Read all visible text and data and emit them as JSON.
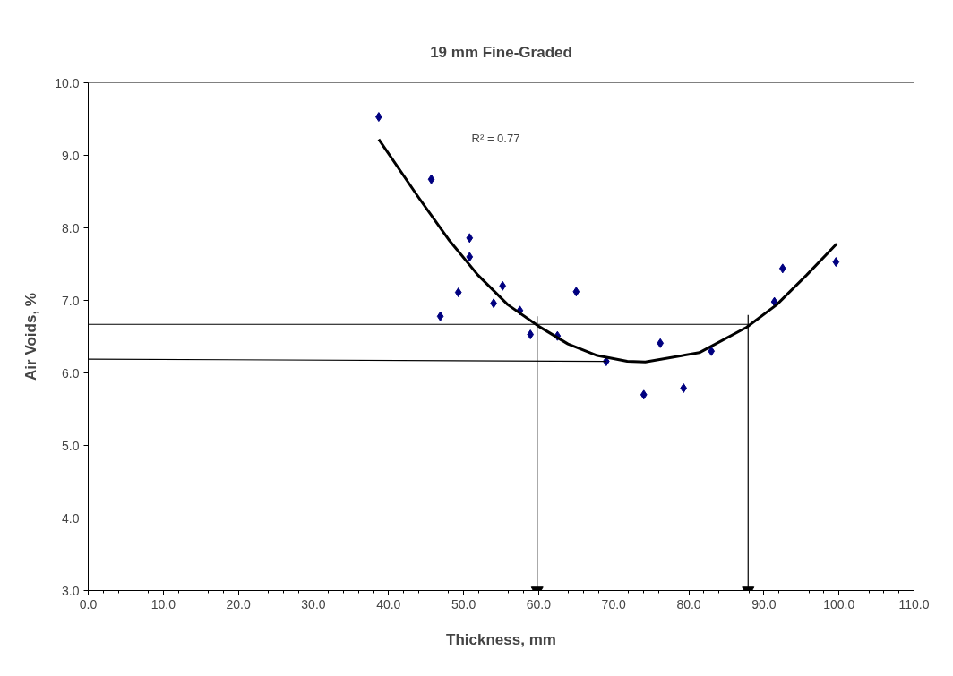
{
  "chart_data": {
    "type": "scatter",
    "title": "19 mm Fine-Graded",
    "xlabel": "Thickness, mm",
    "ylabel": "Air Voids, %",
    "xlim": [
      0,
      110
    ],
    "ylim": [
      3,
      10
    ],
    "xticks": [
      {
        "value": 0,
        "label": "0.0"
      },
      {
        "value": 10,
        "label": "10.0"
      },
      {
        "value": 20,
        "label": "20.0"
      },
      {
        "value": 30,
        "label": "30.0"
      },
      {
        "value": 40,
        "label": "40.0"
      },
      {
        "value": 50,
        "label": "50.0"
      },
      {
        "value": 60,
        "label": "60.0"
      },
      {
        "value": 70,
        "label": "70.0"
      },
      {
        "value": 80,
        "label": "80.0"
      },
      {
        "value": 90,
        "label": "90.0"
      },
      {
        "value": 100,
        "label": "100.0"
      },
      {
        "value": 110,
        "label": "110.0"
      }
    ],
    "yticks": [
      {
        "value": 3,
        "label": "3.0"
      },
      {
        "value": 4,
        "label": "4.0"
      },
      {
        "value": 5,
        "label": "5.0"
      },
      {
        "value": 6,
        "label": "6.0"
      },
      {
        "value": 7,
        "label": "7.0"
      },
      {
        "value": 8,
        "label": "8.0"
      },
      {
        "value": 9,
        "label": "9.0"
      },
      {
        "value": 10,
        "label": "10.0"
      }
    ],
    "grid": false,
    "marker": "diamond",
    "series": [
      {
        "color": "#000080",
        "x": [
          38.7,
          45.7,
          46.9,
          49.3,
          50.8,
          50.8,
          54.0,
          55.2,
          57.5,
          58.9,
          62.5,
          65.0,
          69.0,
          74.0,
          76.2,
          79.3,
          83.0,
          91.4,
          92.5,
          99.6
        ],
        "values": [
          9.53,
          8.67,
          6.78,
          7.11,
          7.86,
          7.6,
          6.96,
          7.2,
          6.86,
          6.53,
          6.51,
          7.12,
          6.16,
          5.7,
          6.41,
          5.79,
          6.3,
          6.98,
          7.44,
          7.53
        ]
      },
      {
        "type": "line",
        "marker": "none",
        "color": "#000000",
        "x": [
          38.7,
          44.0,
          48.0,
          51.9,
          55.9,
          59.9,
          63.9,
          67.8,
          71.8,
          74.2,
          81.4,
          87.7,
          91.7,
          95.7,
          99.7
        ],
        "values": [
          9.22,
          8.42,
          7.84,
          7.35,
          6.94,
          6.65,
          6.4,
          6.24,
          6.16,
          6.15,
          6.28,
          6.63,
          6.94,
          7.35,
          7.78
        ]
      },
      {
        "type": "line",
        "marker": "none",
        "color": "#000000",
        "x": [
          0,
          87.9
        ],
        "values": [
          6.67,
          6.67
        ]
      },
      {
        "type": "line",
        "marker": "none",
        "color": "#000000",
        "x": [
          0,
          69.0
        ],
        "values": [
          6.19,
          6.16
        ]
      },
      {
        "type": "line",
        "marker": "triangle",
        "color": "#000000",
        "x": [
          59.8,
          59.8
        ],
        "values": [
          6.78,
          3.0
        ]
      },
      {
        "type": "line",
        "marker": "triangle",
        "color": "#000000",
        "x": [
          87.9,
          87.9
        ],
        "values": [
          6.8,
          3.0
        ]
      }
    ],
    "annotations": [
      "R² = 0.77"
    ]
  }
}
